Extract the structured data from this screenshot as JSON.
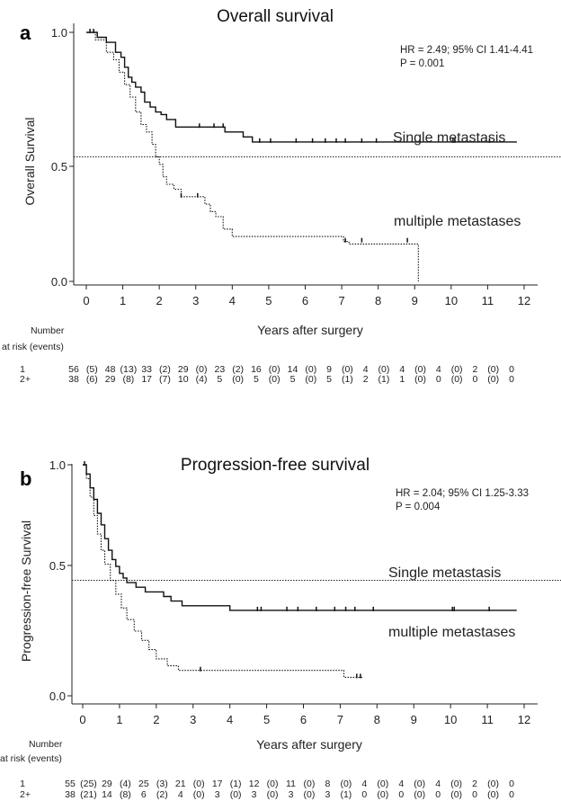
{
  "chart_data": [
    {
      "type": "line",
      "panel": "a",
      "title": "Overall survival",
      "xlabel": "Years after surgery",
      "ylabel": "Overall Survival",
      "xlim": [
        -0.3,
        12.3
      ],
      "ylim": [
        -0.05,
        1.05
      ],
      "x_ticks": [
        0,
        1,
        2,
        3,
        4,
        5,
        6,
        7,
        8,
        9,
        10,
        11,
        12
      ],
      "y_ticks": [
        "0.0",
        "0.5",
        "1.0"
      ],
      "reference_line": 0.5,
      "annotation": {
        "hr": "HR = 2.49; 95% CI 1.41-4.41",
        "p": "P = 0.001"
      },
      "series": [
        {
          "name": "Single metastasis",
          "line": "solid",
          "x": [
            0,
            0.3,
            0.55,
            0.8,
            0.95,
            1.05,
            1.15,
            1.25,
            1.35,
            1.5,
            1.6,
            1.75,
            1.9,
            2.05,
            2.2,
            2.45,
            3.8,
            4.0,
            4.3,
            4.55,
            11.8
          ],
          "y": [
            1.0,
            0.98,
            0.96,
            0.92,
            0.9,
            0.86,
            0.82,
            0.8,
            0.78,
            0.76,
            0.72,
            0.7,
            0.68,
            0.67,
            0.65,
            0.62,
            0.6,
            0.6,
            0.58,
            0.56,
            0.56
          ],
          "censored": [
            [
              0.1,
              1.0
            ],
            [
              0.2,
              1.0
            ],
            [
              3.1,
              0.62
            ],
            [
              3.5,
              0.62
            ],
            [
              3.75,
              0.62
            ],
            [
              4.75,
              0.56
            ],
            [
              5.05,
              0.56
            ],
            [
              5.75,
              0.56
            ],
            [
              6.2,
              0.56
            ],
            [
              6.55,
              0.56
            ],
            [
              6.85,
              0.56
            ],
            [
              7.1,
              0.56
            ],
            [
              7.55,
              0.56
            ],
            [
              7.95,
              0.56
            ],
            [
              10.05,
              0.56
            ],
            [
              10.1,
              0.56
            ],
            [
              11.05,
              0.56
            ]
          ],
          "label": "Single metastasis"
        },
        {
          "name": "multiple metastases",
          "line": "dotted",
          "x": [
            0,
            0.25,
            0.55,
            0.75,
            0.9,
            1.05,
            1.2,
            1.35,
            1.5,
            1.65,
            1.8,
            1.9,
            2.0,
            2.1,
            2.2,
            2.4,
            2.6,
            3.25,
            3.4,
            3.55,
            3.75,
            4.0,
            7.05,
            7.2,
            8.8,
            9.1
          ],
          "y": [
            1.0,
            0.97,
            0.92,
            0.89,
            0.84,
            0.79,
            0.74,
            0.68,
            0.63,
            0.6,
            0.55,
            0.5,
            0.47,
            0.42,
            0.39,
            0.37,
            0.34,
            0.31,
            0.28,
            0.26,
            0.21,
            0.18,
            0.16,
            0.15,
            0.15,
            0.0
          ],
          "censored": [
            [
              2.6,
              0.34
            ],
            [
              3.05,
              0.34
            ],
            [
              7.1,
              0.16
            ],
            [
              7.55,
              0.16
            ],
            [
              8.8,
              0.16
            ]
          ],
          "label": "multiple metastases"
        }
      ],
      "risk_table": {
        "header": [
          "Number",
          "at risk (events)"
        ],
        "rows": [
          {
            "label": "1",
            "cells": [
              "56",
              "(5)",
              "48",
              "(13)",
              "33",
              "(2)",
              "29",
              "(0)",
              "23",
              "(2)",
              "16",
              "(0)",
              "14",
              "(0)",
              "9",
              "(0)",
              "4",
              "(0)",
              "4",
              "(0)",
              "4",
              "(0)",
              "2",
              "(0)",
              "0"
            ]
          },
          {
            "label": "2+",
            "cells": [
              "38",
              "(6)",
              "29",
              "(8)",
              "17",
              "(7)",
              "10",
              "(4)",
              "5",
              "(0)",
              "5",
              "(0)",
              "5",
              "(0)",
              "5",
              "(1)",
              "2",
              "(1)",
              "1",
              "(0)",
              "0",
              "(0)",
              "0",
              "(0)",
              "0"
            ]
          }
        ]
      }
    },
    {
      "type": "line",
      "panel": "b",
      "title": "Progression-free survival",
      "xlabel": "Years after surgery",
      "ylabel": "Progression-free Survival",
      "xlim": [
        -0.3,
        12.3
      ],
      "ylim": [
        -0.05,
        1.05
      ],
      "x_ticks": [
        0,
        1,
        2,
        3,
        4,
        5,
        6,
        7,
        8,
        9,
        10,
        11,
        12
      ],
      "y_ticks": [
        "0.0",
        "0.5",
        "1.0"
      ],
      "reference_line": 0.5,
      "annotation": {
        "hr": "HR = 2.04; 95% CI 1.25-3.33",
        "p": "P = 0.004"
      },
      "series": [
        {
          "name": "Single metastasis",
          "line": "solid",
          "x": [
            0,
            0.1,
            0.2,
            0.3,
            0.4,
            0.5,
            0.6,
            0.7,
            0.8,
            0.9,
            1.0,
            1.1,
            1.2,
            1.45,
            1.7,
            2.2,
            2.4,
            2.7,
            4.0,
            11.8
          ],
          "y": [
            1.0,
            0.96,
            0.9,
            0.85,
            0.79,
            0.74,
            0.68,
            0.63,
            0.59,
            0.56,
            0.53,
            0.51,
            0.49,
            0.47,
            0.45,
            0.43,
            0.41,
            0.39,
            0.37,
            0.37
          ],
          "censored": [
            [
              0.05,
              1.0
            ],
            [
              4.75,
              0.37
            ],
            [
              4.85,
              0.37
            ],
            [
              5.55,
              0.37
            ],
            [
              5.85,
              0.37
            ],
            [
              6.35,
              0.37
            ],
            [
              6.85,
              0.37
            ],
            [
              7.15,
              0.37
            ],
            [
              7.4,
              0.37
            ],
            [
              7.9,
              0.37
            ],
            [
              10.05,
              0.37
            ],
            [
              10.1,
              0.37
            ],
            [
              11.05,
              0.37
            ]
          ],
          "label": "Single metastasis"
        },
        {
          "name": "multiple metastases",
          "line": "dotted",
          "x": [
            0,
            0.1,
            0.2,
            0.3,
            0.4,
            0.5,
            0.6,
            0.75,
            0.9,
            1.05,
            1.2,
            1.4,
            1.6,
            1.8,
            2.0,
            2.3,
            2.6,
            7.0,
            7.1,
            7.6
          ],
          "y": [
            1.0,
            0.94,
            0.86,
            0.78,
            0.7,
            0.63,
            0.57,
            0.5,
            0.44,
            0.38,
            0.33,
            0.28,
            0.24,
            0.2,
            0.16,
            0.13,
            0.11,
            0.11,
            0.08,
            0.08
          ],
          "censored": [
            [
              3.2,
              0.11
            ],
            [
              7.45,
              0.08
            ],
            [
              7.55,
              0.08
            ]
          ],
          "label": "multiple metastases"
        }
      ],
      "risk_table": {
        "header": [
          "Number",
          "at risk (events)"
        ],
        "rows": [
          {
            "label": "1",
            "cells": [
              "55",
              "(25)",
              "29",
              "(4)",
              "25",
              "(3)",
              "21",
              "(0)",
              "17",
              "(1)",
              "12",
              "(0)",
              "11",
              "(0)",
              "8",
              "(0)",
              "4",
              "(0)",
              "4",
              "(0)",
              "4",
              "(0)",
              "2",
              "(0)",
              "0"
            ]
          },
          {
            "label": "2+",
            "cells": [
              "38",
              "(21)",
              "14",
              "(8)",
              "6",
              "(2)",
              "4",
              "(0)",
              "3",
              "(0)",
              "3",
              "(0)",
              "3",
              "(0)",
              "3",
              "(1)",
              "0",
              "(0)",
              "0",
              "(0)",
              "0",
              "(0)",
              "0",
              "(0)",
              "0"
            ]
          }
        ]
      }
    }
  ]
}
